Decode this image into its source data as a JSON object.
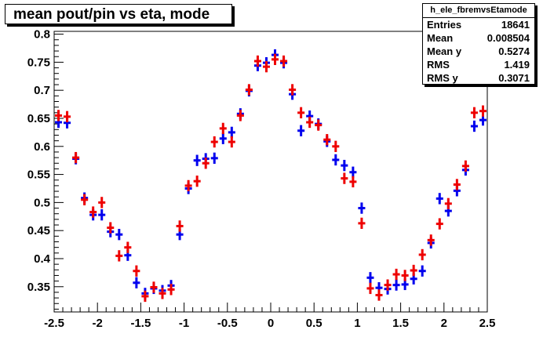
{
  "title": "mean pout/pin vs eta, mode",
  "stats": {
    "name": "h_ele_fbremvsEtamode",
    "rows": [
      {
        "label": "Entries",
        "value": "18641"
      },
      {
        "label": "Mean",
        "value": "0.008504"
      },
      {
        "label": "Mean y",
        "value": "0.5274"
      },
      {
        "label": "RMS",
        "value": "1.419"
      },
      {
        "label": "RMS y",
        "value": "0.3071"
      }
    ]
  },
  "chart_data": {
    "type": "scatter",
    "title": "mean pout/pin vs eta, mode",
    "xlim": [
      -2.5,
      2.5
    ],
    "ylim": [
      0.305,
      0.805
    ],
    "x_ticks": [
      "-2.5",
      "-2",
      "-1.5",
      "-1",
      "-0.5",
      "0",
      "0.5",
      "1",
      "1.5",
      "2",
      "2.5"
    ],
    "y_ticks": [
      "0.35",
      "0.4",
      "0.45",
      "0.5",
      "0.55",
      "0.6",
      "0.65",
      "0.7",
      "0.75",
      "0.8"
    ],
    "bin_width": 0.1,
    "x": [
      -2.45,
      -2.35,
      -2.25,
      -2.15,
      -2.05,
      -1.95,
      -1.85,
      -1.75,
      -1.65,
      -1.55,
      -1.45,
      -1.35,
      -1.25,
      -1.15,
      -1.05,
      -0.95,
      -0.85,
      -0.75,
      -0.65,
      -0.55,
      -0.45,
      -0.35,
      -0.25,
      -0.15,
      -0.05,
      0.05,
      0.15,
      0.25,
      0.35,
      0.45,
      0.55,
      0.65,
      0.75,
      0.85,
      0.95,
      1.05,
      1.15,
      1.25,
      1.35,
      1.45,
      1.55,
      1.65,
      1.75,
      1.85,
      1.95,
      2.05,
      2.15,
      2.25,
      2.35,
      2.45
    ],
    "series": [
      {
        "color": "#0000ee",
        "values": [
          0.643,
          0.642,
          0.578,
          0.508,
          0.478,
          0.478,
          0.448,
          0.443,
          0.406,
          0.357,
          0.338,
          0.347,
          0.343,
          0.352,
          0.443,
          0.525,
          0.575,
          0.578,
          0.579,
          0.614,
          0.625,
          0.658,
          0.699,
          0.744,
          0.749,
          0.763,
          0.749,
          0.693,
          0.628,
          0.654,
          0.64,
          0.609,
          0.576,
          0.566,
          0.554,
          0.49,
          0.366,
          0.348,
          0.346,
          0.353,
          0.354,
          0.364,
          0.378,
          0.428,
          0.507,
          0.485,
          0.521,
          0.558,
          0.636,
          0.647
        ],
        "err": [
          0.01,
          0.01,
          0.01,
          0.01,
          0.01,
          0.01,
          0.01,
          0.01,
          0.01,
          0.01,
          0.01,
          0.01,
          0.01,
          0.01,
          0.01,
          0.01,
          0.01,
          0.01,
          0.01,
          0.01,
          0.01,
          0.01,
          0.01,
          0.01,
          0.01,
          0.01,
          0.01,
          0.01,
          0.01,
          0.01,
          0.01,
          0.01,
          0.01,
          0.01,
          0.01,
          0.01,
          0.01,
          0.01,
          0.01,
          0.01,
          0.01,
          0.01,
          0.01,
          0.01,
          0.01,
          0.01,
          0.01,
          0.01,
          0.01,
          0.01
        ]
      },
      {
        "color": "#ee0000",
        "values": [
          0.655,
          0.653,
          0.58,
          0.505,
          0.483,
          0.5,
          0.455,
          0.405,
          0.42,
          0.378,
          0.333,
          0.349,
          0.338,
          0.345,
          0.458,
          0.53,
          0.538,
          0.57,
          0.608,
          0.632,
          0.608,
          0.655,
          0.701,
          0.752,
          0.742,
          0.755,
          0.752,
          0.701,
          0.66,
          0.643,
          0.638,
          0.612,
          0.6,
          0.543,
          0.537,
          0.463,
          0.347,
          0.335,
          0.353,
          0.372,
          0.37,
          0.379,
          0.407,
          0.433,
          0.462,
          0.498,
          0.532,
          0.565,
          0.66,
          0.663
        ],
        "err": [
          0.01,
          0.01,
          0.01,
          0.01,
          0.01,
          0.01,
          0.01,
          0.01,
          0.01,
          0.01,
          0.01,
          0.01,
          0.01,
          0.01,
          0.01,
          0.01,
          0.01,
          0.01,
          0.01,
          0.01,
          0.01,
          0.01,
          0.01,
          0.01,
          0.01,
          0.01,
          0.01,
          0.01,
          0.01,
          0.01,
          0.01,
          0.01,
          0.01,
          0.01,
          0.01,
          0.01,
          0.01,
          0.01,
          0.01,
          0.01,
          0.01,
          0.01,
          0.01,
          0.01,
          0.01,
          0.01,
          0.01,
          0.01,
          0.01,
          0.01
        ]
      }
    ],
    "legend": "top-right",
    "grid": false
  }
}
